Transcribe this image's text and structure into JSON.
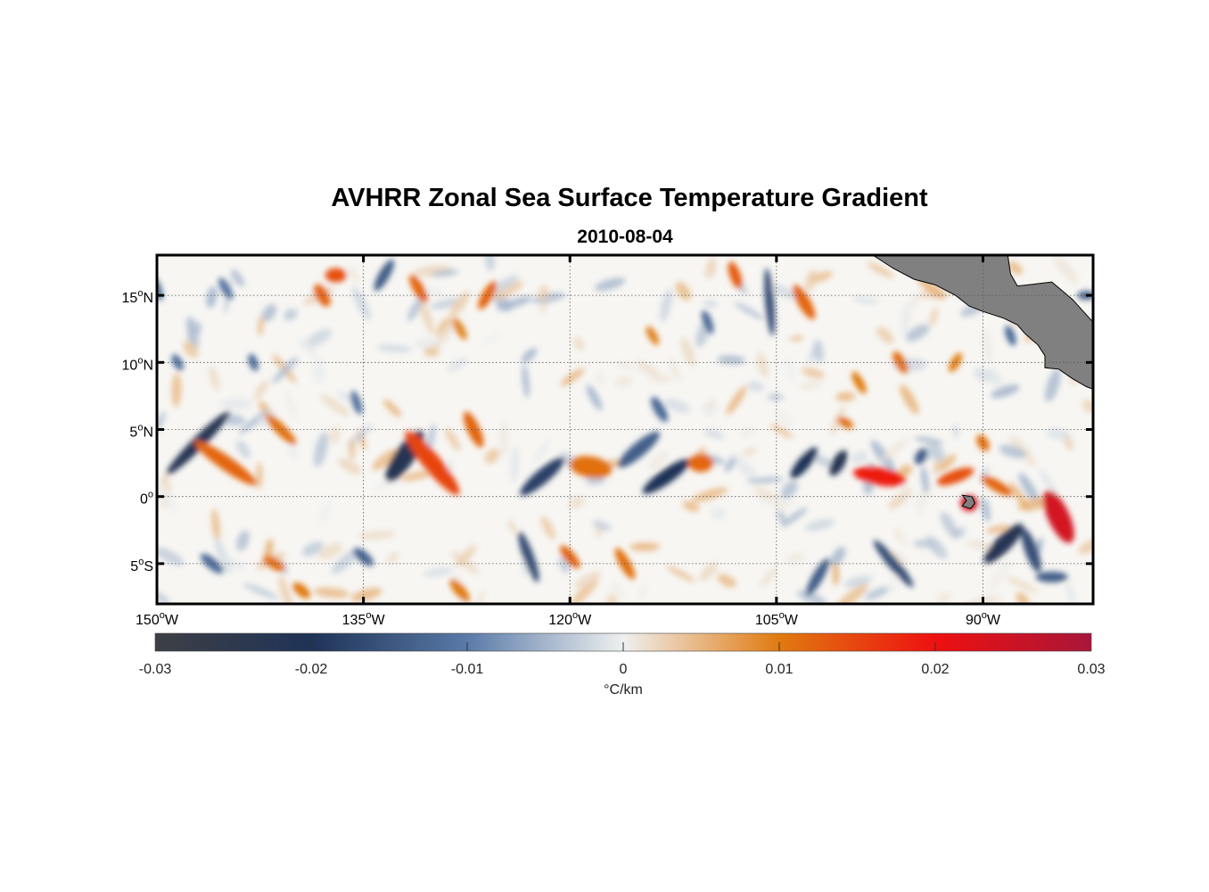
{
  "title": "AVHRR Zonal Sea Surface Temperature Gradient",
  "subtitle": "2010-08-04",
  "colorbar": {
    "ticks": [
      "-0.03",
      "-0.02",
      "-0.01",
      "0",
      "0.01",
      "0.02",
      "0.03"
    ],
    "values": [
      -0.03,
      -0.02,
      -0.01,
      0,
      0.01,
      0.02,
      0.03
    ],
    "unit": "°C/km",
    "colors": [
      "#3d3f45",
      "#1f3357",
      "#5a7aa8",
      "#eef0ef",
      "#e07a10",
      "#ee1010",
      "#a8163a"
    ]
  },
  "map": {
    "lon_range": [
      -150,
      -82
    ],
    "lat_range": [
      -8,
      18
    ],
    "land_color": "#808080",
    "lon_ticks": [
      {
        "value": -150,
        "deg": "150",
        "hemi": "W"
      },
      {
        "value": -135,
        "deg": "135",
        "hemi": "W"
      },
      {
        "value": -120,
        "deg": "120",
        "hemi": "W"
      },
      {
        "value": -105,
        "deg": "105",
        "hemi": "W"
      },
      {
        "value": -90,
        "deg": "90",
        "hemi": "W"
      }
    ],
    "lat_ticks": [
      {
        "value": 15,
        "deg": "15",
        "hemi": "N"
      },
      {
        "value": 10,
        "deg": "10",
        "hemi": "N"
      },
      {
        "value": 5,
        "deg": "5",
        "hemi": "N"
      },
      {
        "value": 0,
        "deg": "0",
        "hemi": ""
      },
      {
        "value": -5,
        "deg": "5",
        "hemi": "S"
      }
    ],
    "features": [
      {
        "lon": -147,
        "lat": 4,
        "v": -0.022,
        "rx": 50,
        "ry": 7,
        "rot": -45
      },
      {
        "lon": -145,
        "lat": 2.5,
        "v": 0.012,
        "rx": 42,
        "ry": 8,
        "rot": 35
      },
      {
        "lon": -141,
        "lat": 5,
        "v": 0.011,
        "rx": 24,
        "ry": 6,
        "rot": 45
      },
      {
        "lon": -132,
        "lat": 3,
        "v": -0.022,
        "rx": 34,
        "ry": 11,
        "rot": -55
      },
      {
        "lon": -130,
        "lat": 2.5,
        "v": 0.015,
        "rx": 46,
        "ry": 10,
        "rot": 50
      },
      {
        "lon": -127,
        "lat": 5,
        "v": 0.012,
        "rx": 22,
        "ry": 7,
        "rot": 65
      },
      {
        "lon": -122,
        "lat": 1.5,
        "v": -0.018,
        "rx": 32,
        "ry": 8,
        "rot": -40
      },
      {
        "lon": -118.5,
        "lat": 2.2,
        "v": 0.011,
        "rx": 24,
        "ry": 12,
        "rot": 10
      },
      {
        "lon": -115,
        "lat": 3.5,
        "v": -0.014,
        "rx": 30,
        "ry": 8,
        "rot": -40
      },
      {
        "lon": -113,
        "lat": 1.5,
        "v": -0.02,
        "rx": 32,
        "ry": 8,
        "rot": -35
      },
      {
        "lon": -110.5,
        "lat": 2.5,
        "v": 0.012,
        "rx": 14,
        "ry": 10,
        "rot": 0
      },
      {
        "lon": -105.5,
        "lat": 14.5,
        "v": -0.016,
        "rx": 38,
        "ry": 5,
        "rot": 85
      },
      {
        "lon": -103,
        "lat": 14.5,
        "v": 0.012,
        "rx": 22,
        "ry": 7,
        "rot": 60
      },
      {
        "lon": -103,
        "lat": 2.5,
        "v": -0.02,
        "rx": 22,
        "ry": 7,
        "rot": -50
      },
      {
        "lon": -100.5,
        "lat": 2.5,
        "v": -0.022,
        "rx": 16,
        "ry": 7,
        "rot": -60
      },
      {
        "lon": -97.5,
        "lat": 1.5,
        "v": 0.019,
        "rx": 30,
        "ry": 10,
        "rot": 10
      },
      {
        "lon": -92,
        "lat": 1.5,
        "v": 0.014,
        "rx": 22,
        "ry": 7,
        "rot": -20
      },
      {
        "lon": -91,
        "lat": -0.5,
        "v": 0.024,
        "rx": 10,
        "ry": 9,
        "rot": 0
      },
      {
        "lon": -89,
        "lat": 0.8,
        "v": 0.012,
        "rx": 20,
        "ry": 6,
        "rot": 30
      },
      {
        "lon": -88.5,
        "lat": -3.5,
        "v": -0.022,
        "rx": 30,
        "ry": 9,
        "rot": -45
      },
      {
        "lon": -84.5,
        "lat": -1.5,
        "v": 0.024,
        "rx": 32,
        "ry": 12,
        "rot": 65
      },
      {
        "lon": -86.5,
        "lat": -4,
        "v": -0.016,
        "rx": 26,
        "ry": 7,
        "rot": 70
      },
      {
        "lon": -85,
        "lat": -6,
        "v": -0.014,
        "rx": 18,
        "ry": 6,
        "rot": 0
      },
      {
        "lon": -96.5,
        "lat": -5,
        "v": -0.016,
        "rx": 34,
        "ry": 6,
        "rot": 50
      },
      {
        "lon": -102,
        "lat": -6,
        "v": -0.014,
        "rx": 24,
        "ry": 6,
        "rot": -60
      },
      {
        "lon": -137,
        "lat": 16.5,
        "v": 0.014,
        "rx": 12,
        "ry": 8,
        "rot": 0
      },
      {
        "lon": -138,
        "lat": 15,
        "v": 0.012,
        "rx": 14,
        "ry": 7,
        "rot": 60
      },
      {
        "lon": -133.5,
        "lat": 16.5,
        "v": -0.014,
        "rx": 20,
        "ry": 6,
        "rot": -60
      },
      {
        "lon": -131,
        "lat": 15.5,
        "v": 0.012,
        "rx": 18,
        "ry": 6,
        "rot": 60
      },
      {
        "lon": -126,
        "lat": 15,
        "v": 0.012,
        "rx": 18,
        "ry": 6,
        "rot": -60
      },
      {
        "lon": -108,
        "lat": 16.5,
        "v": 0.013,
        "rx": 16,
        "ry": 6,
        "rot": 70
      },
      {
        "lon": -123,
        "lat": -4.5,
        "v": -0.016,
        "rx": 30,
        "ry": 6,
        "rot": 70
      },
      {
        "lon": -120,
        "lat": -4.5,
        "v": 0.012,
        "rx": 16,
        "ry": 6,
        "rot": 50
      },
      {
        "lon": -116,
        "lat": -5,
        "v": 0.011,
        "rx": 20,
        "ry": 6,
        "rot": 60
      },
      {
        "lon": -135,
        "lat": -4.5,
        "v": -0.013,
        "rx": 14,
        "ry": 6,
        "rot": 40
      },
      {
        "lon": -141.5,
        "lat": -5,
        "v": 0.011,
        "rx": 14,
        "ry": 6,
        "rot": 30
      },
      {
        "lon": -146,
        "lat": -5,
        "v": -0.012,
        "rx": 16,
        "ry": 6,
        "rot": 40
      },
      {
        "lon": -128,
        "lat": -7,
        "v": 0.01,
        "rx": 16,
        "ry": 6,
        "rot": 50
      },
      {
        "lon": -139.5,
        "lat": -7,
        "v": 0.01,
        "rx": 12,
        "ry": 6,
        "rot": 40
      },
      {
        "lon": -110,
        "lat": 13,
        "v": -0.012,
        "rx": 14,
        "ry": 5,
        "rot": 70
      },
      {
        "lon": -114,
        "lat": 12,
        "v": 0.009,
        "rx": 12,
        "ry": 5,
        "rot": 60
      },
      {
        "lon": -128,
        "lat": 12.5,
        "v": 0.009,
        "rx": 14,
        "ry": 5,
        "rot": 60
      },
      {
        "lon": -145,
        "lat": 15.5,
        "v": -0.011,
        "rx": 14,
        "ry": 5,
        "rot": 60
      },
      {
        "lon": -150,
        "lat": 15.5,
        "v": -0.012,
        "rx": 14,
        "ry": 5,
        "rot": 70
      },
      {
        "lon": -148.5,
        "lat": 10,
        "v": -0.012,
        "rx": 10,
        "ry": 5,
        "rot": 60
      },
      {
        "lon": -143,
        "lat": 10,
        "v": -0.012,
        "rx": 10,
        "ry": 5,
        "rot": 70
      },
      {
        "lon": -96,
        "lat": 10,
        "v": 0.011,
        "rx": 14,
        "ry": 6,
        "rot": 60
      },
      {
        "lon": -92,
        "lat": 10,
        "v": 0.01,
        "rx": 12,
        "ry": 5,
        "rot": -60
      },
      {
        "lon": -88,
        "lat": 12,
        "v": -0.012,
        "rx": 12,
        "ry": 5,
        "rot": 70
      },
      {
        "lon": -86,
        "lat": 15,
        "v": 0.012,
        "rx": 10,
        "ry": 5,
        "rot": 60
      },
      {
        "lon": -82.5,
        "lat": 15,
        "v": -0.014,
        "rx": 10,
        "ry": 5,
        "rot": 0
      },
      {
        "lon": -99,
        "lat": 8.5,
        "v": 0.01,
        "rx": 14,
        "ry": 5,
        "rot": 60
      },
      {
        "lon": -135.5,
        "lat": 7,
        "v": -0.011,
        "rx": 14,
        "ry": 5,
        "rot": 70
      },
      {
        "lon": -113.5,
        "lat": 6.5,
        "v": -0.012,
        "rx": 16,
        "ry": 6,
        "rot": 60
      },
      {
        "lon": -100,
        "lat": 5.5,
        "v": 0.011,
        "rx": 10,
        "ry": 5,
        "rot": 30
      },
      {
        "lon": -90,
        "lat": 4,
        "v": 0.011,
        "rx": 10,
        "ry": 6,
        "rot": 60
      },
      {
        "lon": -94.5,
        "lat": 3,
        "v": -0.014,
        "rx": 10,
        "ry": 6,
        "rot": -60
      }
    ],
    "land": [
      {
        "name": "central-america",
        "points": [
          [
            -98,
            18
          ],
          [
            -96.5,
            17
          ],
          [
            -95,
            16.2
          ],
          [
            -93.5,
            15.8
          ],
          [
            -92,
            15
          ],
          [
            -91,
            14.2
          ],
          [
            -90,
            13.8
          ],
          [
            -88.5,
            13.3
          ],
          [
            -87.5,
            12.8
          ],
          [
            -87,
            12.2
          ],
          [
            -86,
            11.3
          ],
          [
            -85.5,
            10.5
          ],
          [
            -85.5,
            9.6
          ],
          [
            -84.5,
            9.5
          ],
          [
            -83.5,
            8.8
          ],
          [
            -82.5,
            8.2
          ],
          [
            -82,
            8.0
          ],
          [
            -82,
            13
          ],
          [
            -83.5,
            14.7
          ],
          [
            -85,
            16.0
          ],
          [
            -86.6,
            15.8
          ],
          [
            -87.5,
            15.7
          ],
          [
            -88,
            16.6
          ],
          [
            -88.2,
            18
          ]
        ]
      },
      {
        "name": "south-america",
        "points": [
          [
            -82,
            -0.5
          ],
          [
            -81.4,
            -1.2
          ],
          [
            -81,
            -2.5
          ],
          [
            -81.3,
            -4.2
          ],
          [
            -81.1,
            -5.3
          ],
          [
            -81.4,
            -6.2
          ],
          [
            -81.1,
            -7.0
          ],
          [
            -80.5,
            -8
          ],
          [
            -82,
            -8
          ]
        ]
      },
      {
        "name": "galapagos",
        "points": [
          [
            -91.5,
            0.1
          ],
          [
            -90.8,
            0
          ],
          [
            -90.6,
            -0.5
          ],
          [
            -90.9,
            -0.9
          ],
          [
            -91.5,
            -0.7
          ],
          [
            -91.2,
            -0.3
          ]
        ]
      }
    ]
  }
}
